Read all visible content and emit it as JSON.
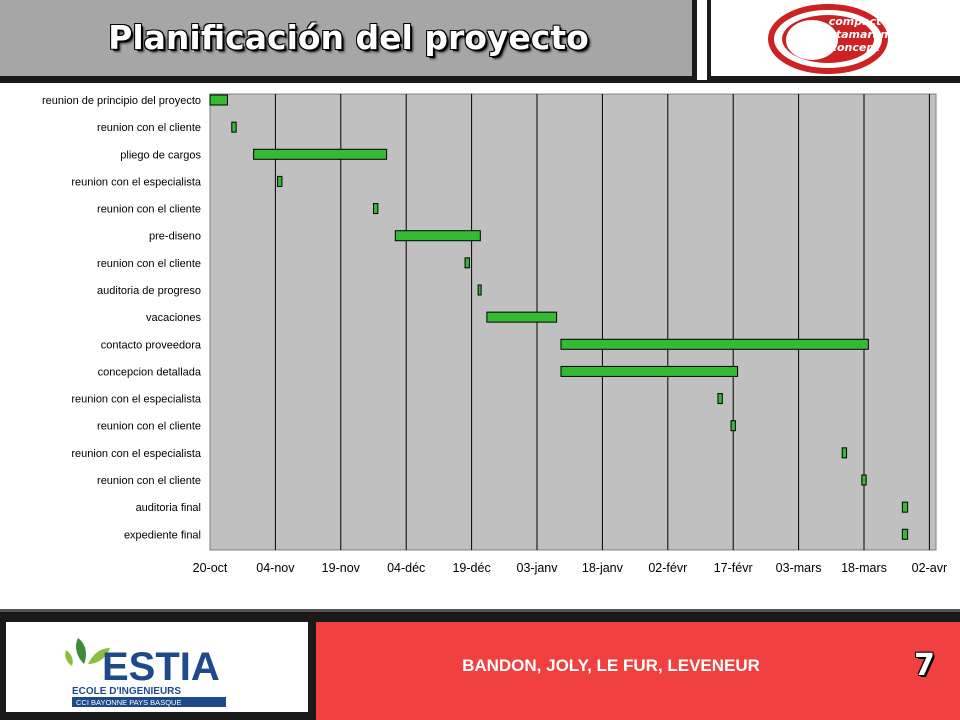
{
  "slide": {
    "title": "Planificación del proyecto",
    "logo_lines": [
      "compact",
      "catamaran",
      "concept"
    ],
    "estia": {
      "name": "ESTIA",
      "line1": "ECOLE D'INGENIEURS",
      "line2": "CCI BAYONNE PAYS BASQUE"
    },
    "authors": "BANDON, JOLY, LE FUR, LEVENEUR",
    "page_number": "7",
    "colors": {
      "bar": "#33bb33",
      "plot_bg": "#c0c0c0",
      "footer_red": "#f04040",
      "logo_red": "#cc2222"
    }
  },
  "chart_data": {
    "type": "gantt",
    "title": "",
    "xlabel": "",
    "ylabel": "",
    "x_ticks": [
      "20-oct",
      "04-nov",
      "19-nov",
      "04-déc",
      "19-déc",
      "03-janv",
      "18-janv",
      "02-févr",
      "17-févr",
      "03-mars",
      "18-mars",
      "02-avr"
    ],
    "x_unit": "days since 20-oct",
    "xlim": [
      0,
      165
    ],
    "grid": "vertical lines at each tick",
    "legend": "none",
    "tasks": [
      {
        "name": "reunion de principio del proyecto",
        "start": 0,
        "end": 4
      },
      {
        "name": "reunion con el cliente",
        "start": 5,
        "end": 6
      },
      {
        "name": "pliego de cargos",
        "start": 10,
        "end": 40.5
      },
      {
        "name": "reunion con el especialista",
        "start": 15.5,
        "end": 16.5
      },
      {
        "name": "reunion con el cliente",
        "start": 37.5,
        "end": 38.5
      },
      {
        "name": "pre-diseno",
        "start": 42.5,
        "end": 62
      },
      {
        "name": "reunion con el cliente",
        "start": 58.5,
        "end": 59.5
      },
      {
        "name": "auditoria de progreso",
        "start": 61.5,
        "end": 62
      },
      {
        "name": "vacaciones",
        "start": 63.5,
        "end": 79.5
      },
      {
        "name": "contacto proveedora",
        "start": 80.5,
        "end": 151
      },
      {
        "name": "concepcion detallada",
        "start": 80.5,
        "end": 121
      },
      {
        "name": "reunion con el especialista",
        "start": 116.5,
        "end": 117.5
      },
      {
        "name": "reunion con el cliente",
        "start": 119.5,
        "end": 120.5
      },
      {
        "name": "reunion con el especialista",
        "start": 145,
        "end": 146
      },
      {
        "name": "reunion con el cliente",
        "start": 149.5,
        "end": 150.5
      },
      {
        "name": "auditoria final",
        "start": 158.8,
        "end": 160
      },
      {
        "name": "expediente final",
        "start": 158.8,
        "end": 160
      }
    ]
  }
}
